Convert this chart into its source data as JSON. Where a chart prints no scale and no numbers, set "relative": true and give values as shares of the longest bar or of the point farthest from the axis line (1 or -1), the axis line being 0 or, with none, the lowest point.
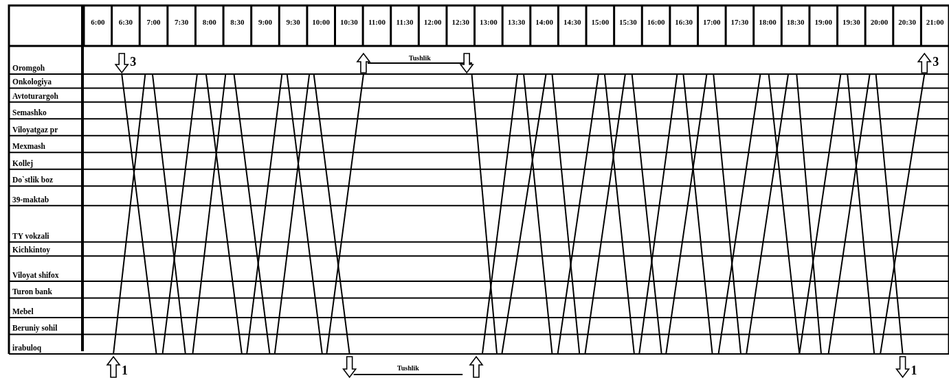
{
  "chart_data": {
    "type": "line",
    "relative": true,
    "xlim": [
      5.75,
      21.25
    ],
    "xticks": [
      {
        "value": 6,
        "label": "6:00"
      },
      {
        "value": 6.5,
        "label": "6:30"
      },
      {
        "value": 7,
        "label": "7:00"
      },
      {
        "value": 7.5,
        "label": "7:30"
      },
      {
        "value": 8,
        "label": "8:00"
      },
      {
        "value": 8.5,
        "label": "8:30"
      },
      {
        "value": 9,
        "label": "9:00"
      },
      {
        "value": 9.5,
        "label": "9:30"
      },
      {
        "value": 10,
        "label": "10:00"
      },
      {
        "value": 10.5,
        "label": "10:30"
      },
      {
        "value": 11,
        "label": "11:00"
      },
      {
        "value": 11.5,
        "label": "11:30"
      },
      {
        "value": 12,
        "label": "12:00"
      },
      {
        "value": 12.5,
        "label": "12:30"
      },
      {
        "value": 13,
        "label": "13:00"
      },
      {
        "value": 13.5,
        "label": "13:30"
      },
      {
        "value": 14,
        "label": "14:00"
      },
      {
        "value": 14.5,
        "label": "14:30"
      },
      {
        "value": 15,
        "label": "15:00"
      },
      {
        "value": 15.5,
        "label": "15:30"
      },
      {
        "value": 16,
        "label": "16:00"
      },
      {
        "value": 16.5,
        "label": "16:30"
      },
      {
        "value": 17,
        "label": "17:00"
      },
      {
        "value": 17.5,
        "label": "17:30"
      },
      {
        "value": 18,
        "label": "18:00"
      },
      {
        "value": 18.5,
        "label": "18:30"
      },
      {
        "value": 19,
        "label": "19:00"
      },
      {
        "value": 19.5,
        "label": "19:30"
      },
      {
        "value": 20,
        "label": "20:00"
      },
      {
        "value": 20.5,
        "label": "20:30"
      },
      {
        "value": 21,
        "label": "21:00"
      }
    ],
    "ref_lines": [
      {
        "axis": "y",
        "value": 1,
        "label": "Oromgoh"
      },
      {
        "axis": "y",
        "value": 0.95,
        "label": "Onkologiya"
      },
      {
        "axis": "y",
        "value": 0.9,
        "label": "Avtoturargoh"
      },
      {
        "axis": "y",
        "value": 0.84,
        "label": "Semashko"
      },
      {
        "axis": "y",
        "value": 0.78,
        "label": "Viloyatgaz pr"
      },
      {
        "axis": "y",
        "value": 0.72,
        "label": "Mexmash"
      },
      {
        "axis": "y",
        "value": 0.66,
        "label": "Kollej"
      },
      {
        "axis": "y",
        "value": 0.6,
        "label": "Do`stlik boz"
      },
      {
        "axis": "y",
        "value": 0.53,
        "label": "39-maktab"
      },
      {
        "axis": "y",
        "value": 0.4,
        "label": "TY vokzali"
      },
      {
        "axis": "y",
        "value": 0.35,
        "label": "Kichkintoy"
      },
      {
        "axis": "y",
        "value": 0.26,
        "label": "Viloyat shifox"
      },
      {
        "axis": "y",
        "value": 0.2,
        "label": "Turon bank"
      },
      {
        "axis": "y",
        "value": 0.13,
        "label": "Mebel"
      },
      {
        "axis": "y",
        "value": 0.07,
        "label": "Beruniy sohil"
      },
      {
        "axis": "y",
        "value": 0,
        "label": "irabuloq"
      }
    ],
    "legend": "bottom left",
    "marker": "none",
    "line_style": "solid",
    "series": [
      {
        "name": "1",
        "color": "#000000",
        "x": [
          6.28,
          6.85,
          6.98,
          7.57,
          7.7,
          8.29,
          8.44,
          9.08,
          9.17,
          9.79,
          9.87,
          10.51,
          11.99,
          12.61,
          12.7,
          13.15,
          13.24,
          14.03,
          14.14,
          14.63,
          14.73,
          15.45,
          15.57,
          16.1,
          16.18,
          16.91,
          17.03,
          17.52,
          17.62,
          18.37,
          18.52,
          18.96,
          19.09,
          19.83,
          19.94,
          20.42
        ],
        "values": [
          0,
          1,
          1,
          0,
          0,
          1,
          1,
          0,
          0,
          1,
          1,
          0,
          null,
          1,
          1,
          0,
          0,
          1,
          1,
          0,
          0,
          1,
          1,
          0,
          0,
          1,
          1,
          0,
          0,
          1,
          1,
          0,
          0,
          1,
          1,
          0
        ]
      },
      {
        "name": "3",
        "color": "#000000",
        "x": [
          6.43,
          7.05,
          7.16,
          7.78,
          7.94,
          8.58,
          8.67,
          9.3,
          9.39,
          10.02,
          10.1,
          10.76,
          12.22,
          12.78,
          12.89,
          13.52,
          13.63,
          14.14,
          14.24,
          14.97,
          15.08,
          15.61,
          15.7,
          16.38,
          16.49,
          17.01,
          17.12,
          17.87,
          18.02,
          18.57,
          19.31,
          19.43,
          19.91,
          20.02,
          20.81
        ],
        "values": [
          1,
          0,
          0,
          1,
          1,
          0,
          0,
          1,
          1,
          0,
          0,
          1,
          null,
          0,
          0,
          1,
          1,
          0,
          0,
          1,
          1,
          0,
          0,
          1,
          1,
          0,
          0,
          1,
          1,
          0,
          1,
          1,
          0,
          0,
          1
        ]
      }
    ],
    "annotations": [
      "Tushlik",
      "Tushlik"
    ]
  }
}
